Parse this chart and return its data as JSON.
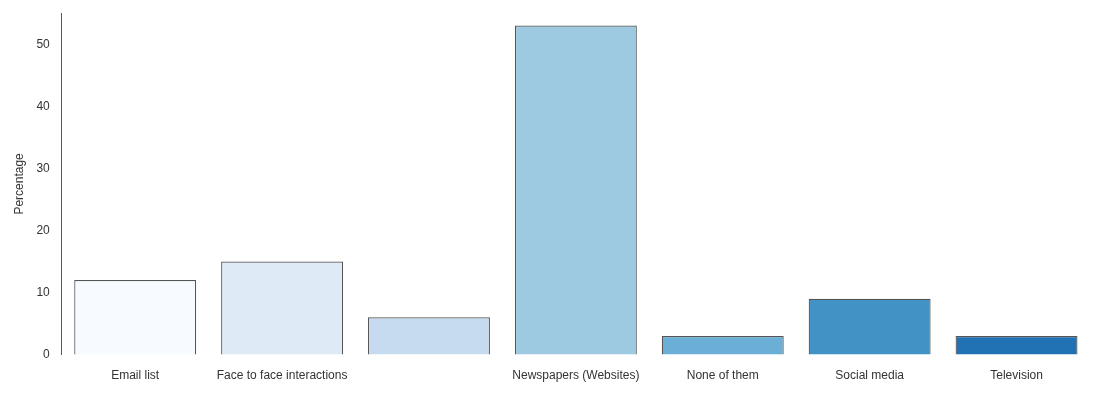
{
  "chart_data": {
    "type": "bar",
    "ylabel": "Percentage",
    "categories": [
      "Email list",
      "Face to face interactions",
      null,
      "Newspapers (Websites)",
      "None of them",
      "Social media",
      "Television"
    ],
    "values": [
      12,
      15,
      6,
      53,
      3,
      9,
      3
    ],
    "colors": [
      "#f7fbff",
      "#deebf7",
      "#c6dbef",
      "#9ecae1",
      "#6baed6",
      "#4292c6",
      "#2171b5"
    ],
    "ylim": [
      0,
      55
    ],
    "yticks": [
      0,
      10,
      20,
      30,
      40,
      50
    ],
    "grid": false,
    "legend": false
  }
}
